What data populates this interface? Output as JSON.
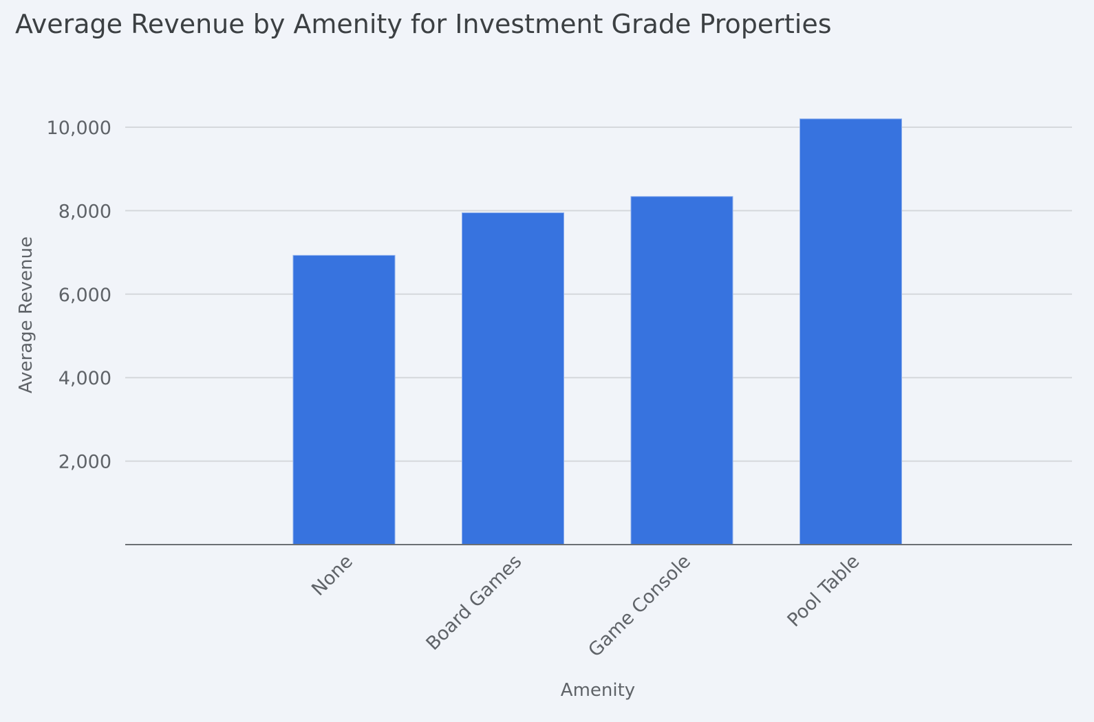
{
  "chart_data": {
    "type": "bar",
    "title": "Average Revenue by Amenity for Investment Grade Properties",
    "xlabel": "Amenity",
    "ylabel": "Average Revenue",
    "categories": [
      "None",
      "Board Games",
      "Game Console",
      "Pool Table"
    ],
    "values": [
      6930,
      7950,
      8340,
      10200
    ],
    "ylim": [
      0,
      10000
    ],
    "yticks": [
      2000,
      4000,
      6000,
      8000,
      10000
    ],
    "ytick_labels": [
      "2,000",
      "4,000",
      "6,000",
      "8,000",
      "10,000"
    ],
    "grid": true,
    "bar_color": "#3773df",
    "legend": "none"
  }
}
